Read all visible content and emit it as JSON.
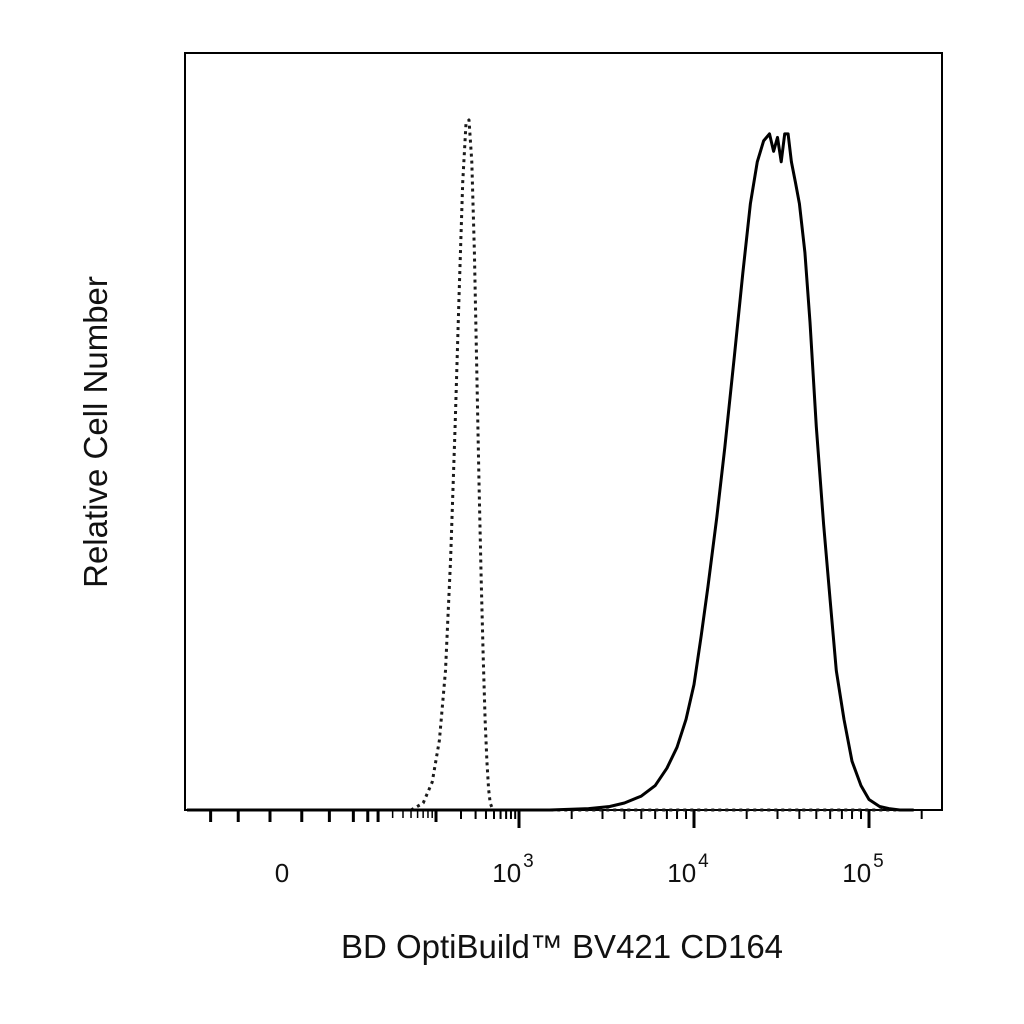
{
  "chart_data": {
    "type": "line",
    "xlabel": "BD OptiBuild™ BV421 CD164",
    "ylabel": "Relative Cell Number",
    "x_scale": "biexponential",
    "xlim": [
      -200,
      180000
    ],
    "ylim": [
      0,
      1
    ],
    "grid": false,
    "legend": "none",
    "x_tick_labels": [
      {
        "value": 0,
        "base": "0",
        "exp": ""
      },
      {
        "value": 1000,
        "base": "10",
        "exp": "3"
      },
      {
        "value": 10000,
        "base": "10",
        "exp": "4"
      },
      {
        "value": 100000,
        "base": "10",
        "exp": "5"
      }
    ],
    "series": [
      {
        "style": "dotted",
        "color": "#1a1a1a",
        "x": [
          -200,
          0,
          50,
          70,
          90,
          110,
          130,
          150,
          170,
          190,
          210,
          230,
          250,
          270,
          290,
          310,
          330,
          350,
          370,
          390,
          410,
          430,
          450,
          470,
          490,
          510,
          1000,
          10000,
          180000
        ],
        "y": [
          0,
          0,
          0,
          0.01,
          0.04,
          0.1,
          0.2,
          0.36,
          0.55,
          0.74,
          0.9,
          0.985,
          0.99,
          0.93,
          0.8,
          0.63,
          0.47,
          0.33,
          0.22,
          0.13,
          0.07,
          0.03,
          0.01,
          0.004,
          0.001,
          0,
          0,
          0,
          0
        ]
      },
      {
        "style": "solid",
        "color": "#000000",
        "x": [
          -200,
          0,
          500,
          1500,
          2500,
          3300,
          4000,
          5000,
          6000,
          7000,
          8000,
          9000,
          10000,
          11000,
          12000,
          13500,
          15000,
          17000,
          19000,
          21000,
          23000,
          25000,
          27000,
          28500,
          30000,
          31500,
          33000,
          34500,
          36000,
          38000,
          40000,
          43000,
          46000,
          50000,
          55000,
          60000,
          65000,
          72000,
          80000,
          90000,
          100000,
          115000,
          130000,
          150000,
          180000
        ],
        "y": [
          0,
          0,
          0,
          0,
          0.002,
          0.005,
          0.01,
          0.02,
          0.035,
          0.06,
          0.09,
          0.13,
          0.18,
          0.25,
          0.32,
          0.42,
          0.52,
          0.65,
          0.77,
          0.87,
          0.93,
          0.96,
          0.97,
          0.945,
          0.965,
          0.93,
          0.97,
          0.97,
          0.93,
          0.9,
          0.87,
          0.8,
          0.7,
          0.55,
          0.41,
          0.3,
          0.2,
          0.13,
          0.07,
          0.035,
          0.015,
          0.005,
          0.002,
          0,
          0
        ]
      }
    ]
  }
}
